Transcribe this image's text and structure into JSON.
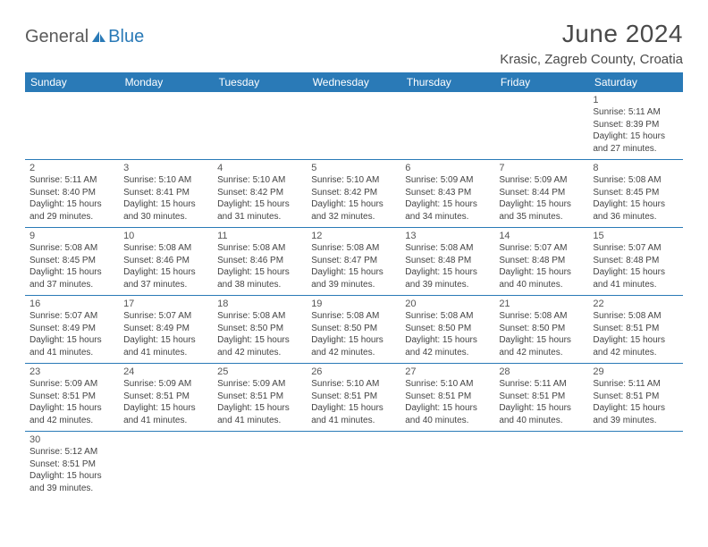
{
  "brand": {
    "part1": "General",
    "part2": "Blue"
  },
  "title": "June 2024",
  "location": "Krasic, Zagreb County, Croatia",
  "colors": {
    "header_bg": "#2a7ab7",
    "header_fg": "#ffffff",
    "border": "#2a7ab7",
    "text": "#444444",
    "title": "#4a4a4a"
  },
  "weekdays": [
    "Sunday",
    "Monday",
    "Tuesday",
    "Wednesday",
    "Thursday",
    "Friday",
    "Saturday"
  ],
  "weeks": [
    [
      null,
      null,
      null,
      null,
      null,
      null,
      {
        "d": "1",
        "sr": "Sunrise: 5:11 AM",
        "ss": "Sunset: 8:39 PM",
        "dl1": "Daylight: 15 hours",
        "dl2": "and 27 minutes."
      }
    ],
    [
      {
        "d": "2",
        "sr": "Sunrise: 5:11 AM",
        "ss": "Sunset: 8:40 PM",
        "dl1": "Daylight: 15 hours",
        "dl2": "and 29 minutes."
      },
      {
        "d": "3",
        "sr": "Sunrise: 5:10 AM",
        "ss": "Sunset: 8:41 PM",
        "dl1": "Daylight: 15 hours",
        "dl2": "and 30 minutes."
      },
      {
        "d": "4",
        "sr": "Sunrise: 5:10 AM",
        "ss": "Sunset: 8:42 PM",
        "dl1": "Daylight: 15 hours",
        "dl2": "and 31 minutes."
      },
      {
        "d": "5",
        "sr": "Sunrise: 5:10 AM",
        "ss": "Sunset: 8:42 PM",
        "dl1": "Daylight: 15 hours",
        "dl2": "and 32 minutes."
      },
      {
        "d": "6",
        "sr": "Sunrise: 5:09 AM",
        "ss": "Sunset: 8:43 PM",
        "dl1": "Daylight: 15 hours",
        "dl2": "and 34 minutes."
      },
      {
        "d": "7",
        "sr": "Sunrise: 5:09 AM",
        "ss": "Sunset: 8:44 PM",
        "dl1": "Daylight: 15 hours",
        "dl2": "and 35 minutes."
      },
      {
        "d": "8",
        "sr": "Sunrise: 5:08 AM",
        "ss": "Sunset: 8:45 PM",
        "dl1": "Daylight: 15 hours",
        "dl2": "and 36 minutes."
      }
    ],
    [
      {
        "d": "9",
        "sr": "Sunrise: 5:08 AM",
        "ss": "Sunset: 8:45 PM",
        "dl1": "Daylight: 15 hours",
        "dl2": "and 37 minutes."
      },
      {
        "d": "10",
        "sr": "Sunrise: 5:08 AM",
        "ss": "Sunset: 8:46 PM",
        "dl1": "Daylight: 15 hours",
        "dl2": "and 37 minutes."
      },
      {
        "d": "11",
        "sr": "Sunrise: 5:08 AM",
        "ss": "Sunset: 8:46 PM",
        "dl1": "Daylight: 15 hours",
        "dl2": "and 38 minutes."
      },
      {
        "d": "12",
        "sr": "Sunrise: 5:08 AM",
        "ss": "Sunset: 8:47 PM",
        "dl1": "Daylight: 15 hours",
        "dl2": "and 39 minutes."
      },
      {
        "d": "13",
        "sr": "Sunrise: 5:08 AM",
        "ss": "Sunset: 8:48 PM",
        "dl1": "Daylight: 15 hours",
        "dl2": "and 39 minutes."
      },
      {
        "d": "14",
        "sr": "Sunrise: 5:07 AM",
        "ss": "Sunset: 8:48 PM",
        "dl1": "Daylight: 15 hours",
        "dl2": "and 40 minutes."
      },
      {
        "d": "15",
        "sr": "Sunrise: 5:07 AM",
        "ss": "Sunset: 8:48 PM",
        "dl1": "Daylight: 15 hours",
        "dl2": "and 41 minutes."
      }
    ],
    [
      {
        "d": "16",
        "sr": "Sunrise: 5:07 AM",
        "ss": "Sunset: 8:49 PM",
        "dl1": "Daylight: 15 hours",
        "dl2": "and 41 minutes."
      },
      {
        "d": "17",
        "sr": "Sunrise: 5:07 AM",
        "ss": "Sunset: 8:49 PM",
        "dl1": "Daylight: 15 hours",
        "dl2": "and 41 minutes."
      },
      {
        "d": "18",
        "sr": "Sunrise: 5:08 AM",
        "ss": "Sunset: 8:50 PM",
        "dl1": "Daylight: 15 hours",
        "dl2": "and 42 minutes."
      },
      {
        "d": "19",
        "sr": "Sunrise: 5:08 AM",
        "ss": "Sunset: 8:50 PM",
        "dl1": "Daylight: 15 hours",
        "dl2": "and 42 minutes."
      },
      {
        "d": "20",
        "sr": "Sunrise: 5:08 AM",
        "ss": "Sunset: 8:50 PM",
        "dl1": "Daylight: 15 hours",
        "dl2": "and 42 minutes."
      },
      {
        "d": "21",
        "sr": "Sunrise: 5:08 AM",
        "ss": "Sunset: 8:50 PM",
        "dl1": "Daylight: 15 hours",
        "dl2": "and 42 minutes."
      },
      {
        "d": "22",
        "sr": "Sunrise: 5:08 AM",
        "ss": "Sunset: 8:51 PM",
        "dl1": "Daylight: 15 hours",
        "dl2": "and 42 minutes."
      }
    ],
    [
      {
        "d": "23",
        "sr": "Sunrise: 5:09 AM",
        "ss": "Sunset: 8:51 PM",
        "dl1": "Daylight: 15 hours",
        "dl2": "and 42 minutes."
      },
      {
        "d": "24",
        "sr": "Sunrise: 5:09 AM",
        "ss": "Sunset: 8:51 PM",
        "dl1": "Daylight: 15 hours",
        "dl2": "and 41 minutes."
      },
      {
        "d": "25",
        "sr": "Sunrise: 5:09 AM",
        "ss": "Sunset: 8:51 PM",
        "dl1": "Daylight: 15 hours",
        "dl2": "and 41 minutes."
      },
      {
        "d": "26",
        "sr": "Sunrise: 5:10 AM",
        "ss": "Sunset: 8:51 PM",
        "dl1": "Daylight: 15 hours",
        "dl2": "and 41 minutes."
      },
      {
        "d": "27",
        "sr": "Sunrise: 5:10 AM",
        "ss": "Sunset: 8:51 PM",
        "dl1": "Daylight: 15 hours",
        "dl2": "and 40 minutes."
      },
      {
        "d": "28",
        "sr": "Sunrise: 5:11 AM",
        "ss": "Sunset: 8:51 PM",
        "dl1": "Daylight: 15 hours",
        "dl2": "and 40 minutes."
      },
      {
        "d": "29",
        "sr": "Sunrise: 5:11 AM",
        "ss": "Sunset: 8:51 PM",
        "dl1": "Daylight: 15 hours",
        "dl2": "and 39 minutes."
      }
    ],
    [
      {
        "d": "30",
        "sr": "Sunrise: 5:12 AM",
        "ss": "Sunset: 8:51 PM",
        "dl1": "Daylight: 15 hours",
        "dl2": "and 39 minutes."
      },
      null,
      null,
      null,
      null,
      null,
      null
    ]
  ]
}
